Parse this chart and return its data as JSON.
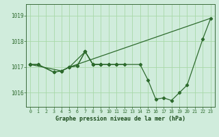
{
  "xlabel": "Graphe pression niveau de la mer (hPa)",
  "x_labels": [
    "0",
    "1",
    "2",
    "3",
    "4",
    "5",
    "6",
    "7",
    "8",
    "9",
    "10",
    "11",
    "12",
    "13",
    "14",
    "15",
    "16",
    "17",
    "18",
    "19",
    "20",
    "21",
    "22",
    "23"
  ],
  "yticks": [
    1016,
    1017,
    1018,
    1019
  ],
  "grid_color": "#a8d8a8",
  "bg_color": "#d0ecdc",
  "line_color": "#2d6a2d",
  "ylim_low": 1015.45,
  "ylim_high": 1019.45,
  "line_segments": [
    {
      "x": [
        0,
        1,
        3,
        4,
        5,
        7,
        8,
        9,
        10,
        11,
        14,
        15,
        16,
        17,
        18,
        19,
        20,
        22,
        23
      ],
      "y": [
        1017.1,
        1017.1,
        1016.8,
        1016.85,
        1017.0,
        1017.6,
        1017.1,
        1017.1,
        1017.1,
        1017.1,
        1017.1,
        1016.5,
        1015.75,
        1015.8,
        1015.7,
        1016.0,
        1016.3,
        1018.1,
        1018.9
      ]
    },
    {
      "x": [
        0,
        1,
        3,
        4,
        5,
        6,
        7,
        8,
        9,
        10,
        11,
        12
      ],
      "y": [
        1017.1,
        1017.1,
        1016.8,
        1016.85,
        1017.0,
        1017.05,
        1017.6,
        1017.1,
        1017.1,
        1017.1,
        1017.1,
        1017.1
      ]
    },
    {
      "x": [
        0,
        4,
        5,
        6,
        7,
        8,
        9
      ],
      "y": [
        1017.1,
        1016.85,
        1017.0,
        1017.05,
        1017.6,
        1017.1,
        1017.1
      ]
    },
    {
      "x": [
        5,
        23
      ],
      "y": [
        1017.0,
        1018.9
      ]
    }
  ]
}
